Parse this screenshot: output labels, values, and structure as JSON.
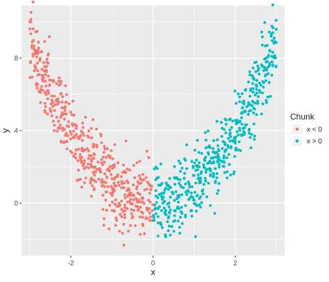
{
  "chart_data": {
    "type": "scatter",
    "xlabel": "x",
    "ylabel": "y",
    "xlim": [
      -3.2,
      3.2
    ],
    "ylim": [
      -2.9,
      10.9
    ],
    "x_ticks": [
      -2,
      0,
      2
    ],
    "y_ticks": [
      0,
      4,
      8
    ],
    "x_tick_labels": [
      "-2",
      "0",
      "2"
    ],
    "y_tick_labels": [
      "0",
      "4",
      "8"
    ],
    "grid": true,
    "legend_position": "right",
    "legend_title": "Chunk",
    "relationship": "y = x^2 + noise",
    "noise_sd_approx": 1.0,
    "n_points_per_series_approx": 500,
    "series": [
      {
        "name": "x < 0",
        "color": "#F8766D",
        "x_range": [
          -3.0,
          0.0
        ]
      },
      {
        "name": "x > 0",
        "color": "#00BFC4",
        "x_range": [
          0.0,
          3.0
        ]
      }
    ]
  }
}
